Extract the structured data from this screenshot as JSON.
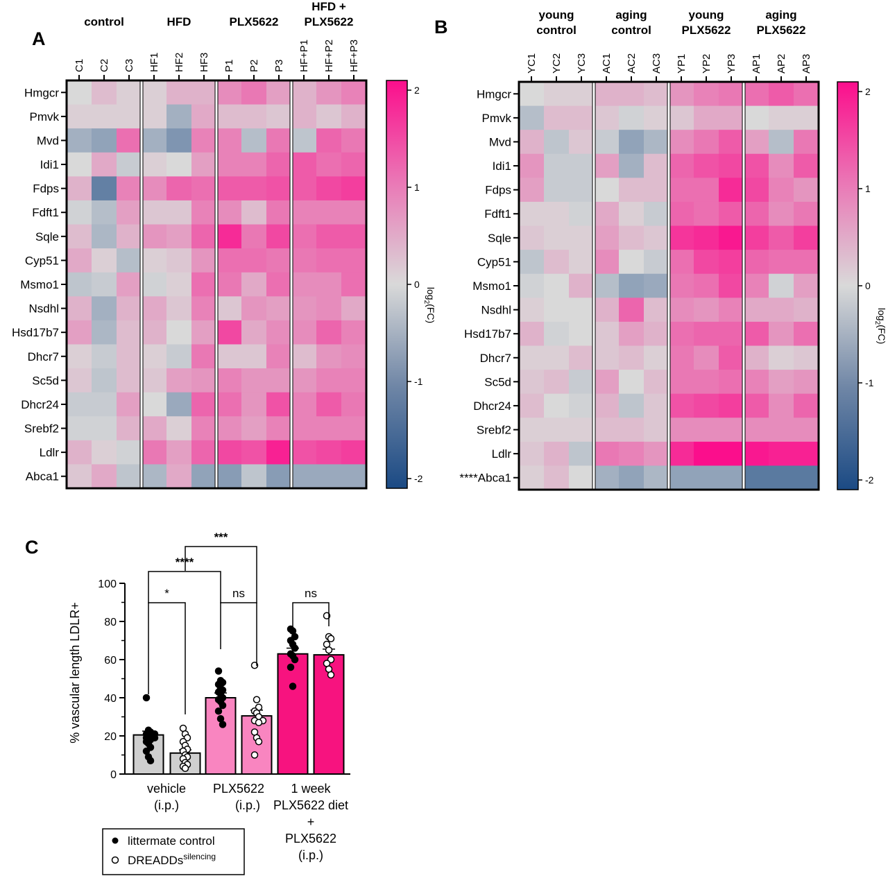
{
  "colors": {
    "neg": "#1b4a84",
    "mid": "#d9d9d9",
    "pos": "#fb0e8c",
    "bar_vehicle": "#cfcfcf",
    "bar_plx_ip": "#f985c0",
    "bar_diet": "#f7137f"
  },
  "panel_a": {
    "letter": "A",
    "groups": [
      "control",
      "HFD",
      "PLX5622",
      "HFD +\nPLX5622"
    ],
    "columns": [
      "C1",
      "C2",
      "C3",
      "HF1",
      "HF2",
      "HF3",
      "P1",
      "P2",
      "P3",
      "HF+P1",
      "HF+P2",
      "HF+P3"
    ],
    "rows": [
      "Hmgcr",
      "Pmvk",
      "Mvd",
      "Idi1",
      "Fdps",
      "Fdft1",
      "Sqle",
      "Cyp51",
      "Msmo1",
      "Nsdhl",
      "Hsd17b7",
      "Dhcr7",
      "Sc5d",
      "Dhcr24",
      "Srebf2",
      "Ldlr",
      "Abca1"
    ],
    "values": [
      [
        0.0,
        0.3,
        0.1,
        0.1,
        0.4,
        0.4,
        0.8,
        1.0,
        0.6,
        0.4,
        0.7,
        0.9
      ],
      [
        0.1,
        0.1,
        0.1,
        0.1,
        -0.6,
        0.5,
        0.3,
        0.3,
        0.2,
        0.4,
        0.2,
        0.4
      ],
      [
        -0.6,
        -0.8,
        1.1,
        -0.6,
        -1.0,
        0.9,
        0.9,
        -0.4,
        1.0,
        -0.3,
        1.2,
        1.0
      ],
      [
        0.0,
        0.5,
        -0.2,
        0.1,
        0.0,
        0.6,
        0.9,
        0.9,
        1.2,
        1.3,
        1.1,
        1.2
      ],
      [
        0.4,
        -1.3,
        0.9,
        0.8,
        1.2,
        1.1,
        1.3,
        1.3,
        1.4,
        1.3,
        1.5,
        1.6
      ],
      [
        -0.1,
        -0.4,
        0.6,
        0.2,
        0.2,
        0.9,
        0.8,
        0.3,
        1.0,
        0.9,
        0.9,
        0.9
      ],
      [
        0.3,
        -0.5,
        0.4,
        0.7,
        0.6,
        1.2,
        1.8,
        1.0,
        1.5,
        1.1,
        1.3,
        1.3
      ],
      [
        0.5,
        0.1,
        -0.4,
        0.1,
        0.2,
        0.7,
        1.1,
        1.1,
        1.0,
        1.0,
        1.1,
        1.1
      ],
      [
        -0.3,
        -0.2,
        0.6,
        -0.1,
        0.1,
        1.1,
        1.0,
        0.5,
        1.1,
        0.8,
        0.8,
        1.1
      ],
      [
        0.4,
        -0.6,
        0.4,
        0.5,
        0.2,
        0.9,
        0.2,
        0.7,
        0.6,
        0.7,
        0.8,
        0.5
      ],
      [
        0.6,
        -0.5,
        0.3,
        0.4,
        0.0,
        0.6,
        1.5,
        0.5,
        0.8,
        0.8,
        1.2,
        0.9
      ],
      [
        0.1,
        -0.2,
        0.3,
        0.1,
        -0.2,
        1.0,
        0.2,
        0.2,
        0.9,
        0.3,
        0.7,
        0.8
      ],
      [
        0.2,
        -0.3,
        0.3,
        0.2,
        0.6,
        0.7,
        0.9,
        0.7,
        0.7,
        0.7,
        0.9,
        0.9
      ],
      [
        -0.2,
        -0.2,
        0.6,
        0.0,
        -0.7,
        1.2,
        1.1,
        0.7,
        1.4,
        0.9,
        1.3,
        1.0
      ],
      [
        -0.1,
        -0.1,
        0.4,
        0.5,
        0.1,
        0.9,
        0.8,
        0.6,
        0.9,
        0.9,
        0.9,
        0.9
      ],
      [
        0.4,
        0.1,
        -0.1,
        1.0,
        0.6,
        1.2,
        1.5,
        1.4,
        1.9,
        1.4,
        1.5,
        1.6
      ],
      [
        0.2,
        0.5,
        -0.3,
        -0.5,
        0.5,
        -0.8,
        -0.9,
        -0.3,
        -0.9,
        -0.7,
        -0.7,
        -0.7
      ]
    ],
    "colorbar": {
      "label": "log2(FC)",
      "ticks": [
        "2",
        "1",
        "0",
        "-1",
        "-2"
      ],
      "range": [
        -2.1,
        2.1
      ]
    }
  },
  "panel_b": {
    "letter": "B",
    "groups": [
      "young\ncontrol",
      "aging\ncontrol",
      "young\nPLX5622",
      "aging\nPLX5622"
    ],
    "columns": [
      "YC1",
      "YC2",
      "YC3",
      "AC1",
      "AC2",
      "AC3",
      "YP1",
      "YP2",
      "YP3",
      "AP1",
      "AP2",
      "AP3"
    ],
    "rows": [
      "Hmgcr",
      "Pmvk",
      "Mvd",
      "Idi1",
      "Fdps",
      "Fdft1",
      "Sqle",
      "Cyp51",
      "Msmo1",
      "Nsdhl",
      "Hsd17b7",
      "Dhcr7",
      "Sc5d",
      "Dhcr24",
      "Srebf2",
      "Ldlr",
      "****Abca1"
    ],
    "values": [
      [
        0.0,
        0.1,
        0.1,
        0.4,
        0.4,
        0.3,
        0.7,
        0.9,
        1.0,
        1.1,
        1.3,
        1.1
      ],
      [
        -0.4,
        0.3,
        0.3,
        0.2,
        -0.1,
        0.1,
        0.2,
        0.5,
        0.5,
        0.0,
        0.1,
        0.1
      ],
      [
        0.4,
        -0.3,
        0.2,
        -0.2,
        -0.8,
        -0.5,
        0.8,
        1.0,
        1.3,
        0.6,
        -0.4,
        1.0
      ],
      [
        0.7,
        -0.2,
        -0.2,
        0.6,
        -0.6,
        0.3,
        1.2,
        1.4,
        1.5,
        1.4,
        0.8,
        1.3
      ],
      [
        0.6,
        -0.2,
        -0.2,
        0.0,
        0.3,
        0.3,
        1.1,
        1.1,
        1.8,
        1.5,
        0.9,
        0.7
      ],
      [
        0.1,
        0.1,
        -0.1,
        0.5,
        0.1,
        -0.2,
        1.2,
        1.1,
        1.3,
        1.2,
        0.8,
        1.0
      ],
      [
        0.2,
        0.1,
        0.1,
        0.6,
        0.3,
        0.2,
        1.7,
        1.8,
        2.0,
        1.6,
        1.3,
        1.6
      ],
      [
        -0.3,
        0.3,
        0.1,
        0.8,
        0.0,
        -0.2,
        1.1,
        1.5,
        1.6,
        1.2,
        1.1,
        1.1
      ],
      [
        -0.1,
        0.0,
        0.4,
        -0.4,
        -0.8,
        -0.7,
        1.0,
        1.1,
        1.5,
        0.9,
        -0.1,
        0.6
      ],
      [
        0.1,
        0.0,
        0.0,
        0.4,
        1.2,
        0.3,
        0.8,
        0.7,
        0.9,
        0.5,
        0.5,
        0.4
      ],
      [
        0.4,
        -0.1,
        0.0,
        0.2,
        0.6,
        0.4,
        1.1,
        1.2,
        1.2,
        1.3,
        0.7,
        1.1
      ],
      [
        0.1,
        0.1,
        0.3,
        0.2,
        0.3,
        0.1,
        1.0,
        0.8,
        1.3,
        0.4,
        0.1,
        0.2
      ],
      [
        0.2,
        0.3,
        -0.2,
        0.6,
        0.0,
        0.3,
        1.0,
        1.0,
        1.1,
        0.9,
        0.6,
        0.7
      ],
      [
        0.3,
        0.0,
        -0.1,
        0.4,
        -0.3,
        0.2,
        1.4,
        1.5,
        1.6,
        1.3,
        0.8,
        1.2
      ],
      [
        0.1,
        0.1,
        0.1,
        0.3,
        0.3,
        0.2,
        0.8,
        0.8,
        0.8,
        0.8,
        0.8,
        0.8
      ],
      [
        0.2,
        0.4,
        -0.3,
        1.0,
        0.9,
        0.7,
        1.8,
        2.1,
        2.1,
        2.0,
        1.9,
        1.9
      ],
      [
        0.1,
        0.3,
        0.0,
        -0.6,
        -0.8,
        -0.5,
        -0.8,
        -0.8,
        -0.8,
        -1.4,
        -1.4,
        -1.4
      ]
    ],
    "colorbar": {
      "label": "log2(FC)",
      "ticks": [
        "2",
        "1",
        "0",
        "-1",
        "-2"
      ],
      "range": [
        -2.1,
        2.1
      ]
    }
  },
  "chart_data": [
    {
      "type": "heatmap",
      "title": "A",
      "xlabel": "",
      "ylabel": "",
      "zlabel": "log2(FC)",
      "zlim": [
        -2.1,
        2.1
      ],
      "note": "values in panel_a.values"
    },
    {
      "type": "heatmap",
      "title": "B",
      "xlabel": "",
      "ylabel": "",
      "zlabel": "log2(FC)",
      "zlim": [
        -2.1,
        2.1
      ],
      "note": "values in panel_b.values"
    },
    {
      "type": "bar",
      "title": "C",
      "letter": "C",
      "ylabel": "% vascular length LDLR+",
      "ylim": [
        0,
        100
      ],
      "yticks": [
        "0",
        "20",
        "40",
        "60",
        "80",
        "100"
      ],
      "categories": [
        [
          "vehicle",
          "(i.p.)"
        ],
        [
          "PLX5622",
          "(i.p.)"
        ],
        [
          "1 week",
          "PLX5622 diet",
          "+",
          "PLX5622",
          "(i.p.)"
        ]
      ],
      "series": [
        {
          "name": "littermate control",
          "means": [
            20.5,
            40.0,
            63.0
          ],
          "sem": [
            2.0,
            2.5,
            3.0
          ],
          "points": [
            [
              40,
              23,
              22,
              21,
              21,
              20,
              19,
              19,
              18,
              17,
              16,
              14,
              12,
              9,
              7
            ],
            [
              54,
              49,
              48,
              47,
              45,
              44,
              43,
              42,
              40,
              39,
              38,
              36,
              33,
              29,
              26
            ],
            [
              76,
              75,
              72,
              70,
              68,
              66,
              63,
              62,
              60,
              56,
              46
            ]
          ]
        },
        {
          "name": "DREADDs",
          "name_sup": "silencing",
          "means": [
            11.0,
            30.5,
            62.5
          ],
          "sem": [
            1.7,
            3.0,
            3.0
          ],
          "points": [
            [
              24,
              21,
              19,
              17,
              15,
              13,
              12,
              10,
              9,
              8,
              6,
              5,
              4,
              3
            ],
            [
              57,
              39,
              35,
              33,
              32,
              30,
              28,
              28,
              27,
              22,
              19,
              17,
              10
            ],
            [
              83,
              72,
              71,
              68,
              65,
              60,
              58,
              55,
              52
            ]
          ]
        }
      ],
      "significance": [
        {
          "label": "*",
          "pair": "vehicle-ctrl vs vehicle-DREADDs"
        },
        {
          "label": "ns",
          "pair": "PLX5622-ctrl vs PLX5622-DREADDs"
        },
        {
          "label": "ns",
          "pair": "diet-ctrl vs diet-DREADDs"
        },
        {
          "label": "****",
          "pair": "vehicle-ctrl vs PLX5622-ctrl"
        },
        {
          "label": "***",
          "pair": "vehicle-DREADDs vs PLX5622-DREADDs"
        }
      ],
      "legend": {
        "position": "bottom-left",
        "items": [
          "littermate control",
          "DREADDs"
        ],
        "sup": "silencing"
      }
    }
  ]
}
